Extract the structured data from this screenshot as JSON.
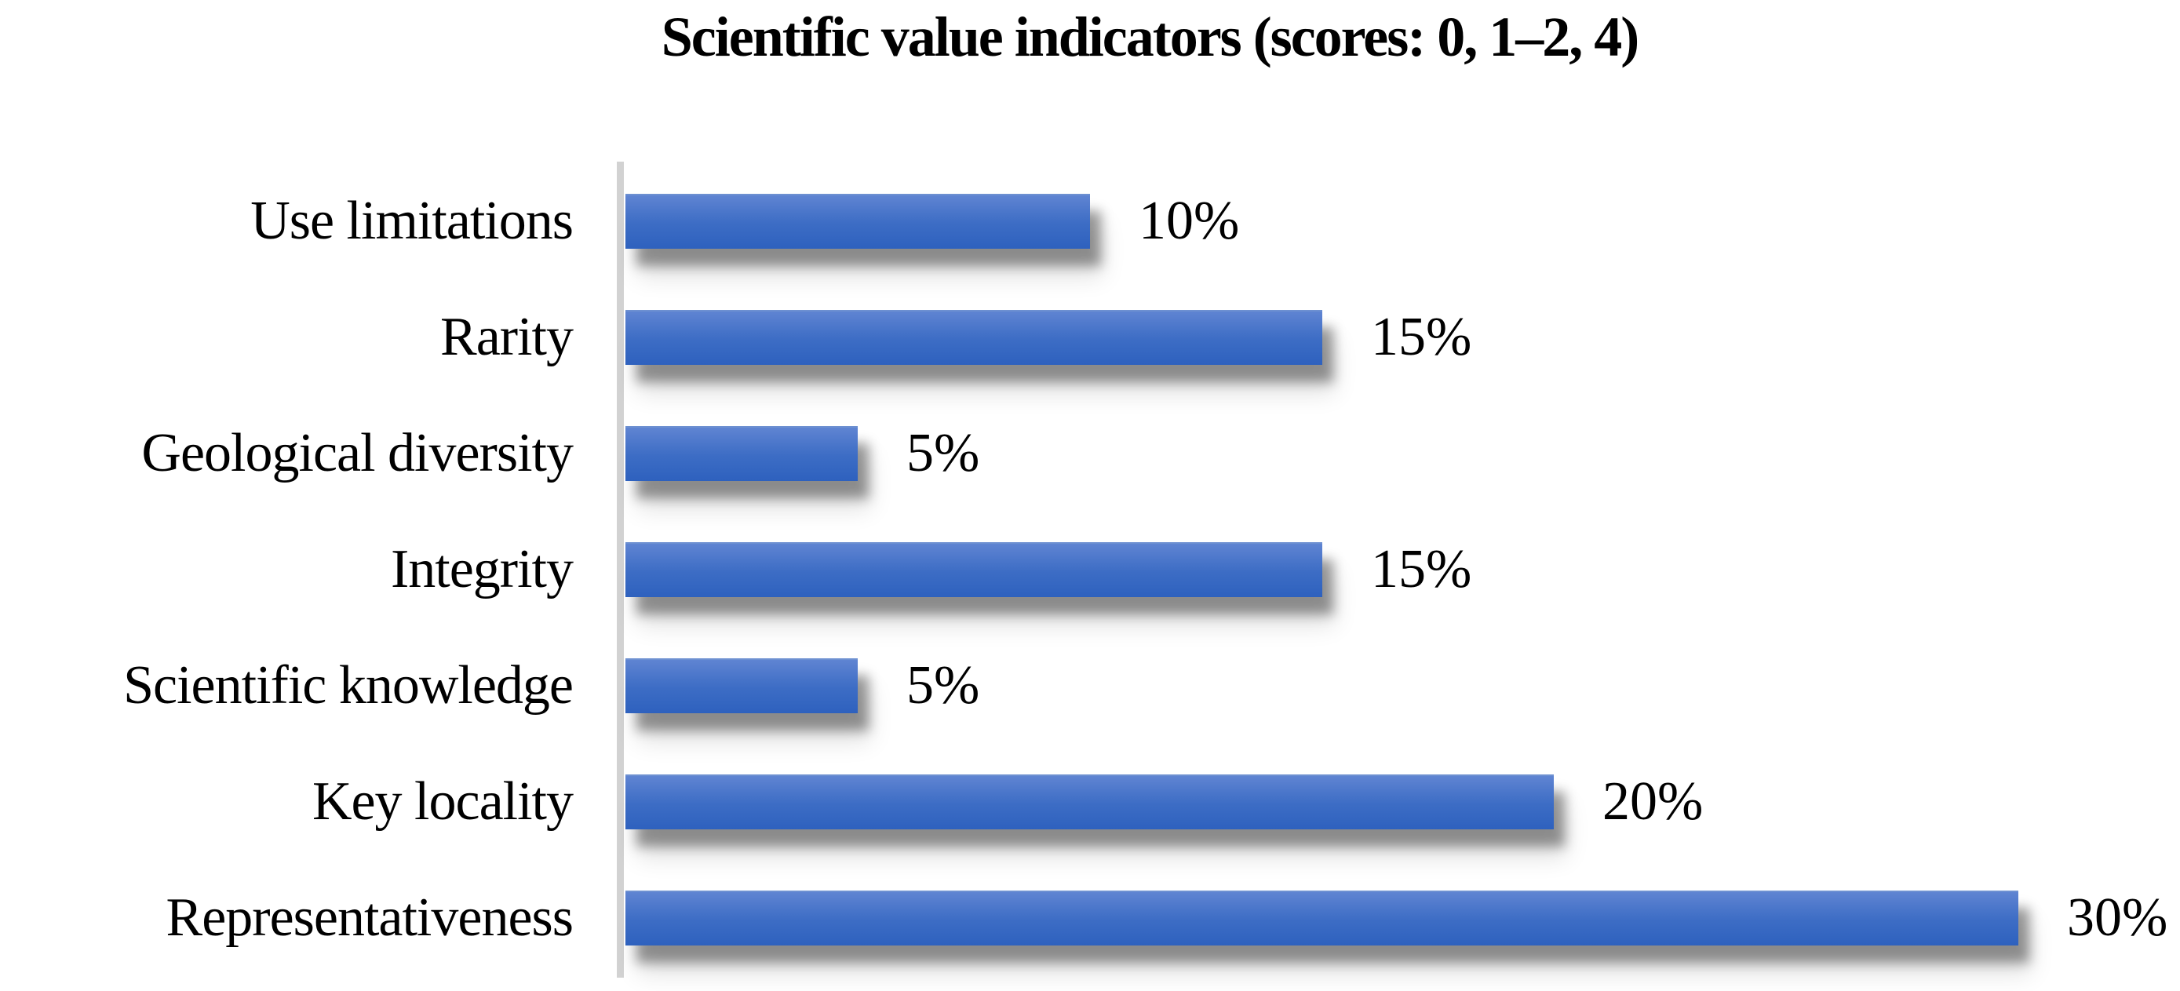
{
  "chart_data": {
    "type": "bar",
    "orientation": "horizontal",
    "title": "Scientific value indicators (scores: 0, 1–2, 4)",
    "categories": [
      "Use limitations",
      "Rarity",
      "Geological diversity",
      "Integrity",
      "Scientific knowledge",
      "Key locality",
      "Representativeness"
    ],
    "values": [
      10,
      15,
      5,
      15,
      5,
      20,
      30
    ],
    "value_labels": [
      "10%",
      "15%",
      "5%",
      "15%",
      "5%",
      "20%",
      "30%"
    ],
    "unit": "%",
    "data_labels_position": "outside-end",
    "legend": "none",
    "grid": "off",
    "axis": {
      "category_axis_line": true,
      "value_axis_ticks_visible": false
    },
    "colors": {
      "bar_gradient_top": "#5F84D2",
      "bar_gradient_mid": "#3D6DC5",
      "bar_gradient_bottom": "#2E61BE",
      "bar_shadow": "#8C8C8C",
      "axis_line": "#D2D2D2",
      "text": "#000000",
      "background": "#FFFFFF"
    }
  }
}
